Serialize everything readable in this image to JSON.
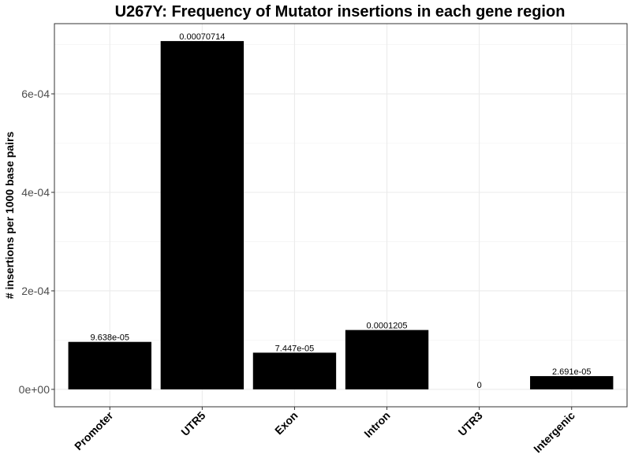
{
  "chart_data": {
    "type": "bar",
    "title": "U267Y: Frequency of Mutator insertions in each gene region",
    "xlabel": "",
    "ylabel": "# insertions per 1000 base pairs",
    "categories": [
      "Promoter",
      "UTR5",
      "Exon",
      "Intron",
      "UTR3",
      "Intergenic"
    ],
    "values": [
      9.638e-05,
      0.00070714,
      7.447e-05,
      0.0001205,
      0,
      2.691e-05
    ],
    "data_labels": [
      "9.638e-05",
      "0.00070714",
      "7.447e-05",
      "0.0001205",
      "0",
      "2.691e-05"
    ],
    "ylim": [
      -3.536e-05,
      0.0007425
    ],
    "yticks": [
      0,
      0.0002,
      0.0004,
      0.0006
    ],
    "ytick_labels": [
      "0e+00",
      "2e-04",
      "4e-04",
      "6e-04"
    ],
    "grid": true,
    "theme": "bw",
    "bar_color": "#000000"
  }
}
